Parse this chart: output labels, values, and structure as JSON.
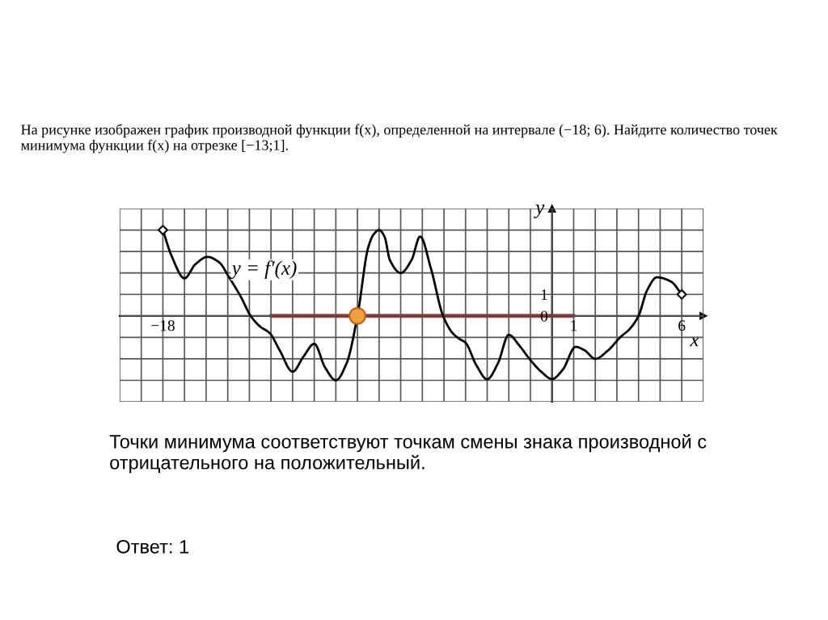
{
  "chart_data": {
    "type": "line",
    "title": "На рисунке изображен график производной функции f(x), определенной на интервале (−18; 6). Найдите количество точек минимума функции f(x) на отрезке [−13;1].",
    "xlabel": "x",
    "ylabel": "y",
    "annotations": [
      "y = f′(x)",
      "Точки минимума соответствуют точкам смены знака производной с отрицательного на положительный.",
      "Ответ: 1"
    ],
    "series": [
      {
        "type": "line",
        "color": "#000000",
        "x": [
          -18,
          -17.6,
          -17,
          -16.5,
          -15.94,
          -15.4,
          -14.94,
          -14.4,
          -13.94,
          -13.5,
          -13.06,
          -12.6,
          -12,
          -11.5,
          -11,
          -10.5,
          -10,
          -9.5,
          -9,
          -8.5,
          -8.25,
          -8,
          -7.75,
          -7.5,
          -7,
          -6.5,
          -6.1,
          -5.6,
          -5.04,
          -4.6,
          -4.3,
          -4,
          -3.5,
          -3,
          -2.5,
          -2,
          -1.5,
          -1,
          -0.5,
          0,
          0.5,
          1.09,
          1.5,
          2,
          2.6,
          3.15,
          3.6,
          4,
          4.4,
          4.85,
          5.5,
          6
        ],
        "values": [
          4,
          2.8,
          1.75,
          2.4,
          2.75,
          2.5,
          1.8,
          0.9,
          0,
          -0.5,
          -0.8,
          -1.6,
          -2.6,
          -1.9,
          -1.3,
          -2.4,
          -3,
          -2.2,
          0,
          3.2,
          3.8,
          4,
          3.7,
          2.6,
          2,
          2.6,
          3.7,
          2.2,
          0,
          -0.8,
          -1.06,
          -1.25,
          -2.3,
          -2.95,
          -2.2,
          -0.88,
          -1.4,
          -2.06,
          -2.6,
          -2.94,
          -2.5,
          -1.44,
          -1.6,
          -2,
          -1.6,
          -1,
          -0.6,
          0,
          1.2,
          1.8,
          1.6,
          1
        ]
      },
      {
        "type": "line",
        "color": "#b0504a",
        "x": [
          -13,
          1
        ],
        "values": [
          0,
          0
        ]
      },
      {
        "type": "scatter",
        "color": "#f0a040",
        "x": [
          -9
        ],
        "values": [
          0
        ],
        "marker": "circle"
      },
      {
        "type": "scatter",
        "color": "#000000",
        "x": [
          -18,
          6
        ],
        "values": [
          4,
          1
        ],
        "marker": "diamond"
      }
    ],
    "xlim": [
      -20,
      7
    ],
    "ylim": [
      -4,
      5
    ],
    "xticks": [
      {
        "value": -20,
        "label": null
      },
      {
        "value": -19,
        "label": null
      },
      {
        "value": -18,
        "label": "−18"
      },
      {
        "value": -17,
        "label": null
      },
      {
        "value": -16,
        "label": null
      },
      {
        "value": -15,
        "label": null
      },
      {
        "value": -14,
        "label": null
      },
      {
        "value": -13,
        "label": null
      },
      {
        "value": -12,
        "label": null
      },
      {
        "value": -11,
        "label": null
      },
      {
        "value": -10,
        "label": null
      },
      {
        "value": -9,
        "label": null
      },
      {
        "value": -8,
        "label": null
      },
      {
        "value": -7,
        "label": null
      },
      {
        "value": -6,
        "label": null
      },
      {
        "value": -5,
        "label": null
      },
      {
        "value": -4,
        "label": null
      },
      {
        "value": -3,
        "label": null
      },
      {
        "value": -2,
        "label": null
      },
      {
        "value": -1,
        "label": null
      },
      {
        "value": 0,
        "label": null
      },
      1,
      {
        "value": 2,
        "label": null
      },
      {
        "value": 3,
        "label": null
      },
      {
        "value": 4,
        "label": null
      },
      {
        "value": 5,
        "label": null
      },
      6,
      {
        "value": 7,
        "label": null
      }
    ],
    "yticks": [
      {
        "value": -4,
        "label": null
      },
      {
        "value": -3,
        "label": null
      },
      {
        "value": -2,
        "label": null
      },
      {
        "value": -1,
        "label": null
      },
      0,
      1,
      {
        "value": 2,
        "label": null
      },
      {
        "value": 3,
        "label": null
      },
      {
        "value": 4,
        "label": null
      },
      {
        "value": 5,
        "label": null
      }
    ],
    "grid": true,
    "line_style": "solid"
  }
}
